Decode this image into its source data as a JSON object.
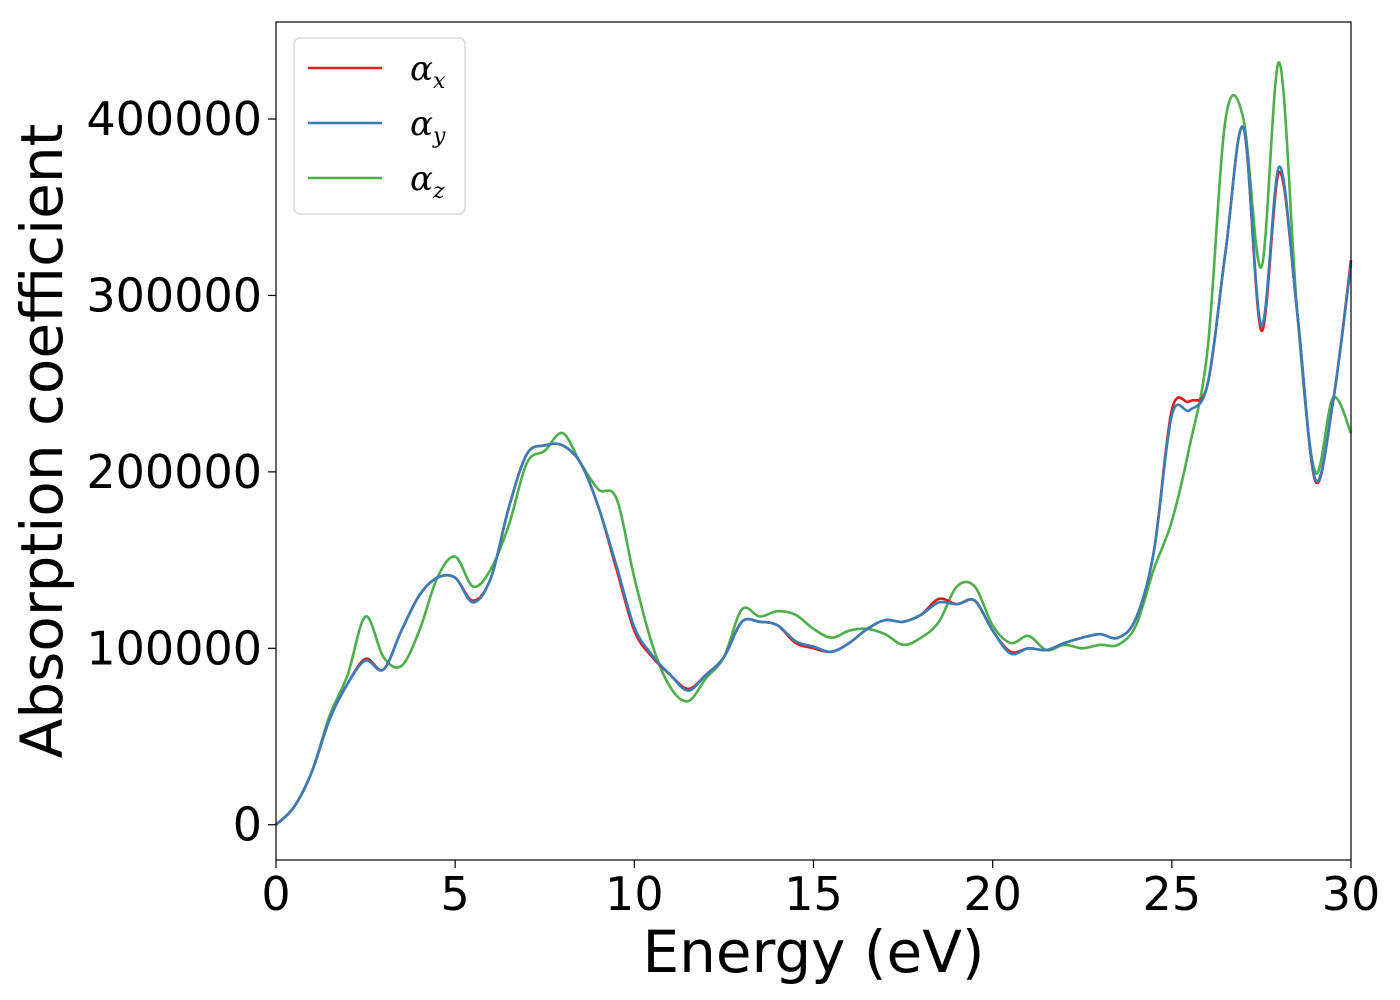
{
  "chart_data": {
    "type": "line",
    "xlabel": "Energy (eV)",
    "ylabel": "Absorption coefficient",
    "xlim": [
      0,
      30
    ],
    "ylim": [
      -20000,
      455000
    ],
    "xticks": [
      "0",
      "5",
      "10",
      "15",
      "20",
      "25",
      "30"
    ],
    "yticks": [
      "0",
      "100000",
      "200000",
      "300000",
      "400000"
    ],
    "grid": false,
    "legend_position": "top-left",
    "series": [
      {
        "name": "α_x",
        "symbol": "α",
        "sub": "x",
        "color": "#e41a1c",
        "x": [
          0,
          0.5,
          1,
          1.5,
          2,
          2.5,
          3,
          3.5,
          4,
          4.5,
          5,
          5.5,
          6,
          6.5,
          7,
          7.5,
          8,
          8.5,
          9,
          9.5,
          10,
          10.5,
          11,
          11.5,
          12,
          12.5,
          13,
          13.5,
          14,
          14.5,
          15,
          15.5,
          16,
          16.5,
          17,
          17.5,
          18,
          18.5,
          19,
          19.5,
          20,
          20.5,
          21,
          21.5,
          22,
          22.5,
          23,
          23.5,
          24,
          24.5,
          25,
          25.5,
          26,
          26.5,
          27,
          27.5,
          28,
          28.5,
          29,
          29.5,
          30
        ],
        "y": [
          0,
          10000,
          30000,
          60000,
          80000,
          94000,
          88000,
          110000,
          130000,
          140000,
          140000,
          127000,
          140000,
          180000,
          210000,
          215000,
          215000,
          205000,
          180000,
          145000,
          110000,
          95000,
          85000,
          77000,
          85000,
          95000,
          115000,
          115000,
          113000,
          103000,
          100000,
          98000,
          103000,
          111000,
          116000,
          115000,
          119000,
          128000,
          125000,
          127000,
          110000,
          98000,
          100000,
          99000,
          103000,
          106000,
          108000,
          106000,
          117000,
          155000,
          235000,
          240000,
          250000,
          325000,
          395000,
          280000,
          370000,
          290000,
          195000,
          240000,
          320000
        ]
      },
      {
        "name": "α_y",
        "symbol": "α",
        "sub": "y",
        "color": "#377eb8",
        "x": [
          0,
          0.5,
          1,
          1.5,
          2,
          2.5,
          3,
          3.5,
          4,
          4.5,
          5,
          5.5,
          6,
          6.5,
          7,
          7.5,
          8,
          8.5,
          9,
          9.5,
          10,
          10.5,
          11,
          11.5,
          12,
          12.5,
          13,
          13.5,
          14,
          14.5,
          15,
          15.5,
          16,
          16.5,
          17,
          17.5,
          18,
          18.5,
          19,
          19.5,
          20,
          20.5,
          21,
          21.5,
          22,
          22.5,
          23,
          23.5,
          24,
          24.5,
          25,
          25.5,
          26,
          26.5,
          27,
          27.5,
          28,
          28.5,
          29,
          29.5,
          30
        ],
        "y": [
          0,
          10000,
          30000,
          60000,
          80000,
          93000,
          88000,
          110000,
          130000,
          140000,
          140000,
          126000,
          140000,
          180000,
          210000,
          215000,
          215000,
          205000,
          180000,
          147000,
          112000,
          96000,
          85000,
          76000,
          85000,
          95000,
          115000,
          115000,
          113000,
          104000,
          101000,
          98000,
          103000,
          111000,
          116000,
          115000,
          119000,
          126000,
          125000,
          127000,
          110000,
          97000,
          100000,
          99000,
          103000,
          106000,
          108000,
          106000,
          117000,
          155000,
          232000,
          235000,
          250000,
          325000,
          395000,
          283000,
          373000,
          290000,
          196000,
          240000,
          318000
        ]
      },
      {
        "name": "α_z",
        "symbol": "α",
        "sub": "z",
        "color": "#4daf4a",
        "x": [
          0,
          0.5,
          1,
          1.5,
          2,
          2.5,
          3,
          3.5,
          4,
          4.5,
          5,
          5.5,
          6,
          6.5,
          7,
          7.5,
          8,
          8.5,
          9,
          9.5,
          10,
          10.5,
          11,
          11.5,
          12,
          12.5,
          13,
          13.5,
          14,
          14.5,
          15,
          15.5,
          16,
          16.5,
          17,
          17.5,
          18,
          18.5,
          19,
          19.5,
          20,
          20.5,
          21,
          21.5,
          22,
          22.5,
          23,
          23.5,
          24,
          24.5,
          25,
          25.5,
          26,
          26.5,
          27,
          27.5,
          28,
          28.5,
          29,
          29.5,
          30
        ],
        "y": [
          0,
          10000,
          30000,
          62000,
          85000,
          118000,
          95000,
          90000,
          110000,
          140000,
          152000,
          135000,
          145000,
          170000,
          205000,
          212000,
          222000,
          205000,
          190000,
          185000,
          140000,
          102000,
          78000,
          70000,
          83000,
          95000,
          122000,
          118000,
          121000,
          119000,
          111000,
          106000,
          110000,
          111000,
          108000,
          102000,
          106000,
          115000,
          135000,
          135000,
          113000,
          103000,
          107000,
          99000,
          102000,
          100000,
          102000,
          102000,
          113000,
          145000,
          172000,
          215000,
          270000,
          400000,
          400000,
          316000,
          432000,
          290000,
          200000,
          242000,
          222000
        ]
      }
    ]
  }
}
